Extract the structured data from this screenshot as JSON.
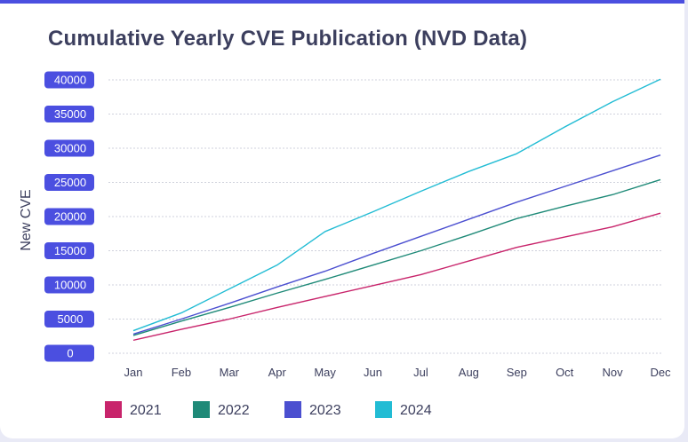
{
  "chart_data": {
    "type": "line",
    "title": "Cumulative Yearly CVE Publication (NVD Data)",
    "xlabel": "",
    "ylabel": "New CVE",
    "categories": [
      "Jan",
      "Feb",
      "Mar",
      "Apr",
      "May",
      "Jun",
      "Jul",
      "Aug",
      "Sep",
      "Oct",
      "Nov",
      "Dec"
    ],
    "yticks": [
      "0",
      "5000",
      "10000",
      "15000",
      "20000",
      "25000",
      "30000",
      "35000",
      "40000"
    ],
    "ylim": [
      0,
      40000
    ],
    "grid": true,
    "legend_position": "bottom-left",
    "series": [
      {
        "name": "2021",
        "color": "#c8246b",
        "values": [
          1900,
          3500,
          5000,
          6700,
          8300,
          9900,
          11500,
          13500,
          15500,
          17000,
          18500,
          20500
        ]
      },
      {
        "name": "2022",
        "color": "#1f8a78",
        "values": [
          2600,
          4700,
          6700,
          8800,
          10800,
          12900,
          15000,
          17300,
          19700,
          21500,
          23200,
          25400
        ]
      },
      {
        "name": "2023",
        "color": "#4b4fd0",
        "values": [
          2800,
          5000,
          7300,
          9700,
          12000,
          14600,
          17100,
          19600,
          22100,
          24400,
          26700,
          29000
        ]
      },
      {
        "name": "2024",
        "color": "#22bcd4",
        "values": [
          3300,
          5900,
          9400,
          12900,
          17800,
          20700,
          23700,
          26600,
          29200,
          33100,
          36800,
          40100
        ]
      }
    ]
  }
}
